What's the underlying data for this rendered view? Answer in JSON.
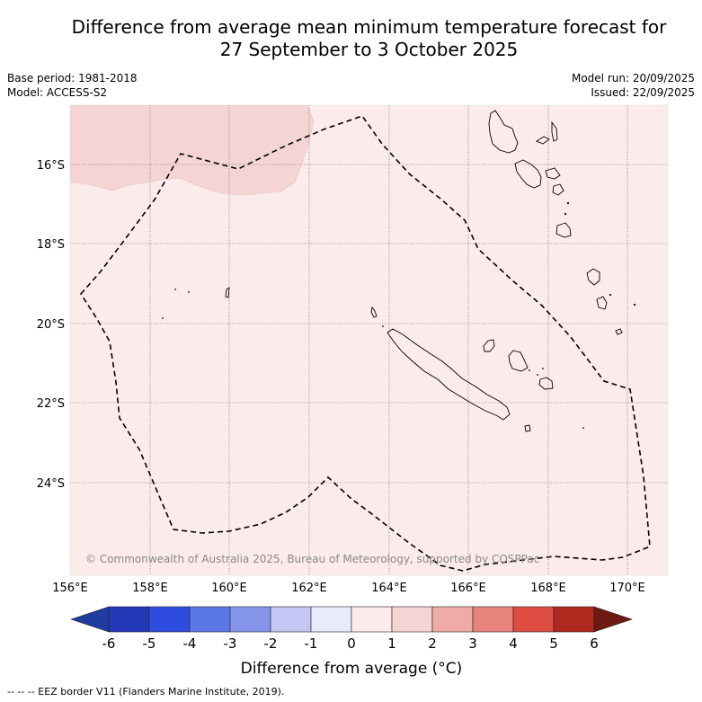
{
  "title_line1": "Difference from average mean minimum temperature forecast for",
  "title_line2": "27 September to 3 October 2025",
  "base_period": "Base period: 1981-2018",
  "model": "Model: ACCESS-S2",
  "model_run": "Model run: 20/09/2025",
  "issued": "Issued: 22/09/2025",
  "copyright": "© Commonwealth of Australia 2025, Bureau of Meteorology, supported by COSPPac",
  "footer": "--  --  -- EEZ border V11 (Flanders Marine Institute, 2019).",
  "map": {
    "background_color": "#fbebea",
    "anomaly_patch_color": "#f4d5d4",
    "lon_labels": [
      "156°E",
      "158°E",
      "160°E",
      "162°E",
      "164°E",
      "166°E",
      "168°E",
      "170°E"
    ],
    "lat_labels": [
      "16°S",
      "18°S",
      "20°S",
      "22°S",
      "24°S"
    ]
  },
  "colorbar": {
    "label": "Difference from average (°C)",
    "tick_labels": [
      "-6",
      "-5",
      "-4",
      "-3",
      "-2",
      "-1",
      "0",
      "1",
      "2",
      "3",
      "4",
      "5",
      "6"
    ],
    "colors": [
      "#1f3b9e",
      "#2238b6",
      "#2f4ce0",
      "#5b78e6",
      "#8595ea",
      "#c2c7f4",
      "#e9ebfb",
      "#fbebea",
      "#f4d5d4",
      "#efaba7",
      "#e8837d",
      "#df4c41",
      "#b0291f",
      "#6d1a14"
    ]
  }
}
